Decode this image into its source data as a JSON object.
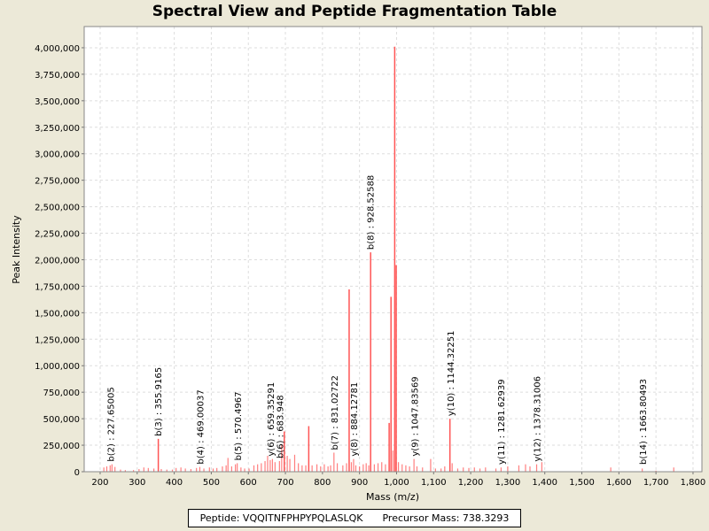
{
  "chart_data": {
    "type": "bar",
    "title": "Spectral View and Peptide Fragmentation Table",
    "xlabel": "Mass (m/z)",
    "ylabel": "Peak Intensity",
    "xlim": [
      157,
      1824
    ],
    "ylim": [
      0,
      4200000
    ],
    "grid": true,
    "series_color": "#FF5555",
    "x_ticks": [
      200,
      300,
      400,
      500,
      600,
      700,
      800,
      900,
      1000,
      1100,
      1200,
      1300,
      1400,
      1500,
      1600,
      1700,
      1800
    ],
    "x_tick_labels": [
      "200",
      "300",
      "400",
      "500",
      "600",
      "700",
      "800",
      "900",
      "1,000",
      "1,100",
      "1,200",
      "1,300",
      "1,400",
      "1,500",
      "1,600",
      "1,700",
      "1,800"
    ],
    "y_ticks": [
      0,
      250000,
      500000,
      750000,
      1000000,
      1250000,
      1500000,
      1750000,
      2000000,
      2250000,
      2500000,
      2750000,
      3000000,
      3250000,
      3500000,
      3750000,
      4000000
    ],
    "y_tick_labels": [
      "0",
      "250,000",
      "500,000",
      "750,000",
      "1,000,000",
      "1,250,000",
      "1,500,000",
      "1,750,000",
      "2,000,000",
      "2,250,000",
      "2,500,000",
      "2,750,000",
      "3,000,000",
      "3,250,000",
      "3,500,000",
      "3,750,000",
      "4,000,000"
    ],
    "peaks": [
      [
        210,
        40000
      ],
      [
        218,
        50000
      ],
      [
        227,
        60000
      ],
      [
        232,
        70000
      ],
      [
        240,
        45000
      ],
      [
        255,
        20000
      ],
      [
        268,
        15000
      ],
      [
        290,
        15000
      ],
      [
        305,
        25000
      ],
      [
        318,
        40000
      ],
      [
        330,
        35000
      ],
      [
        345,
        30000
      ],
      [
        357,
        310000
      ],
      [
        365,
        25000
      ],
      [
        380,
        20000
      ],
      [
        395,
        20000
      ],
      [
        405,
        35000
      ],
      [
        418,
        40000
      ],
      [
        430,
        30000
      ],
      [
        445,
        25000
      ],
      [
        460,
        35000
      ],
      [
        469,
        45000
      ],
      [
        480,
        30000
      ],
      [
        495,
        40000
      ],
      [
        505,
        30000
      ],
      [
        515,
        35000
      ],
      [
        530,
        50000
      ],
      [
        540,
        60000
      ],
      [
        545,
        130000
      ],
      [
        555,
        50000
      ],
      [
        565,
        70000
      ],
      [
        570,
        80000
      ],
      [
        580,
        40000
      ],
      [
        590,
        30000
      ],
      [
        602,
        30000
      ],
      [
        615,
        60000
      ],
      [
        625,
        70000
      ],
      [
        635,
        80000
      ],
      [
        645,
        100000
      ],
      [
        652,
        150000
      ],
      [
        659,
        110000
      ],
      [
        665,
        120000
      ],
      [
        672,
        90000
      ],
      [
        684,
        100000
      ],
      [
        690,
        260000
      ],
      [
        697,
        380000
      ],
      [
        705,
        150000
      ],
      [
        712,
        120000
      ],
      [
        725,
        160000
      ],
      [
        735,
        80000
      ],
      [
        745,
        60000
      ],
      [
        755,
        60000
      ],
      [
        763,
        430000
      ],
      [
        772,
        60000
      ],
      [
        785,
        70000
      ],
      [
        795,
        50000
      ],
      [
        805,
        70000
      ],
      [
        815,
        50000
      ],
      [
        822,
        60000
      ],
      [
        831,
        180000
      ],
      [
        840,
        80000
      ],
      [
        855,
        60000
      ],
      [
        865,
        80000
      ],
      [
        872,
        1720000
      ],
      [
        878,
        90000
      ],
      [
        884,
        120000
      ],
      [
        890,
        60000
      ],
      [
        900,
        50000
      ],
      [
        910,
        70000
      ],
      [
        918,
        80000
      ],
      [
        925,
        60000
      ],
      [
        930,
        2070000
      ],
      [
        940,
        70000
      ],
      [
        950,
        80000
      ],
      [
        960,
        90000
      ],
      [
        970,
        70000
      ],
      [
        980,
        460000
      ],
      [
        985,
        1650000
      ],
      [
        990,
        200000
      ],
      [
        995,
        4010000
      ],
      [
        999,
        1950000
      ],
      [
        1005,
        90000
      ],
      [
        1015,
        70000
      ],
      [
        1025,
        60000
      ],
      [
        1035,
        50000
      ],
      [
        1047,
        120000
      ],
      [
        1055,
        50000
      ],
      [
        1070,
        40000
      ],
      [
        1092,
        120000
      ],
      [
        1105,
        30000
      ],
      [
        1120,
        30000
      ],
      [
        1130,
        50000
      ],
      [
        1144,
        500000
      ],
      [
        1150,
        80000
      ],
      [
        1165,
        30000
      ],
      [
        1180,
        40000
      ],
      [
        1195,
        35000
      ],
      [
        1210,
        40000
      ],
      [
        1225,
        30000
      ],
      [
        1240,
        40000
      ],
      [
        1268,
        30000
      ],
      [
        1282,
        40000
      ],
      [
        1300,
        50000
      ],
      [
        1330,
        60000
      ],
      [
        1348,
        70000
      ],
      [
        1360,
        50000
      ],
      [
        1378,
        70000
      ],
      [
        1392,
        90000
      ],
      [
        1578,
        40000
      ],
      [
        1663,
        30000
      ],
      [
        1700,
        10000
      ],
      [
        1748,
        40000
      ]
    ],
    "annotations": [
      {
        "mass": 227.65005,
        "label": "b(2) : 227.65005"
      },
      {
        "mass": 355.9165,
        "label": "b(3) : 355.9165"
      },
      {
        "mass": 469.00037,
        "label": "b(4) : 469.00037"
      },
      {
        "mass": 570.4967,
        "label": "b(5) : 570.4967"
      },
      {
        "mass": 659.35291,
        "label": "y(6) : 659.35291"
      },
      {
        "mass": 683.948,
        "label": "b(6) : 683.948"
      },
      {
        "mass": 831.02722,
        "label": "b(7) : 831.02722"
      },
      {
        "mass": 884.12781,
        "label": "y(8) : 884.12781"
      },
      {
        "mass": 928.52588,
        "label": "b(8) : 928.52588"
      },
      {
        "mass": 1047.83569,
        "label": "y(9) : 1047.83569"
      },
      {
        "mass": 1144.32251,
        "label": "y(10) : 1144.32251"
      },
      {
        "mass": 1281.62939,
        "label": "y(11) : 1281.62939"
      },
      {
        "mass": 1378.31006,
        "label": "y(12) : 1378.31006"
      },
      {
        "mass": 1663.80493,
        "label": "b(14) : 1663.80493"
      }
    ],
    "legend": {
      "peptide": "Peptide: VQQITNFPHPYPQLASLQK",
      "precursor": "Precursor Mass: 738.3293"
    }
  }
}
